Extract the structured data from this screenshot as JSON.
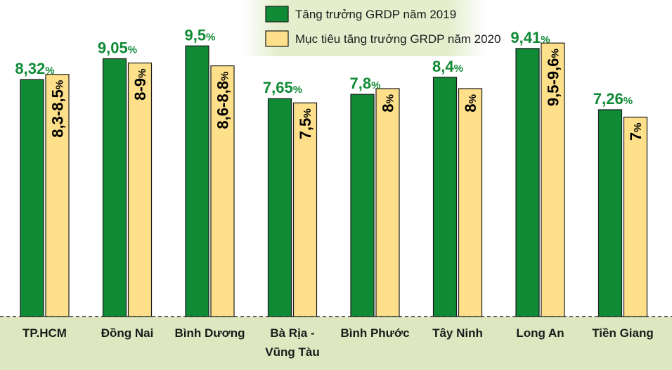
{
  "colors": {
    "growth": "#0f8a35",
    "target": "#ffe08a",
    "axis_band": "#dde8c0",
    "legend_band": "#e4edcc",
    "growth_label": "#0f8a35",
    "target_label": "#000000"
  },
  "chart_data": {
    "type": "bar",
    "categories": [
      "TP.HCM",
      "Đồng Nai",
      "Bình Dương",
      "Bà Rịa -\nVũng Tàu",
      "Bình Phước",
      "Tây Ninh",
      "Long An",
      "Tiền Giang"
    ],
    "series": [
      {
        "name": "Tăng trưởng GRDP năm 2019",
        "values": [
          8.32,
          9.05,
          9.5,
          7.65,
          7.8,
          8.4,
          9.41,
          7.26
        ],
        "labels": [
          "8,32%",
          "9,05%",
          "9,5%",
          "7,65%",
          "7,8%",
          "8,4%",
          "9,41%",
          "7,26%"
        ]
      },
      {
        "name": "Mục tiêu tăng trưởng GRDP năm 2020",
        "values": [
          8.5,
          8.9,
          8.8,
          7.5,
          8.0,
          8.0,
          9.6,
          7.0
        ],
        "labels": [
          "8,3-8,5%",
          "8-9%",
          "8,6-8,8%",
          "7,5%",
          "8%",
          "8%",
          "9,5-9,6%",
          "7%"
        ]
      }
    ],
    "legend_position": "top-center",
    "grid": false,
    "title": "",
    "xlabel": "",
    "ylabel": ""
  }
}
